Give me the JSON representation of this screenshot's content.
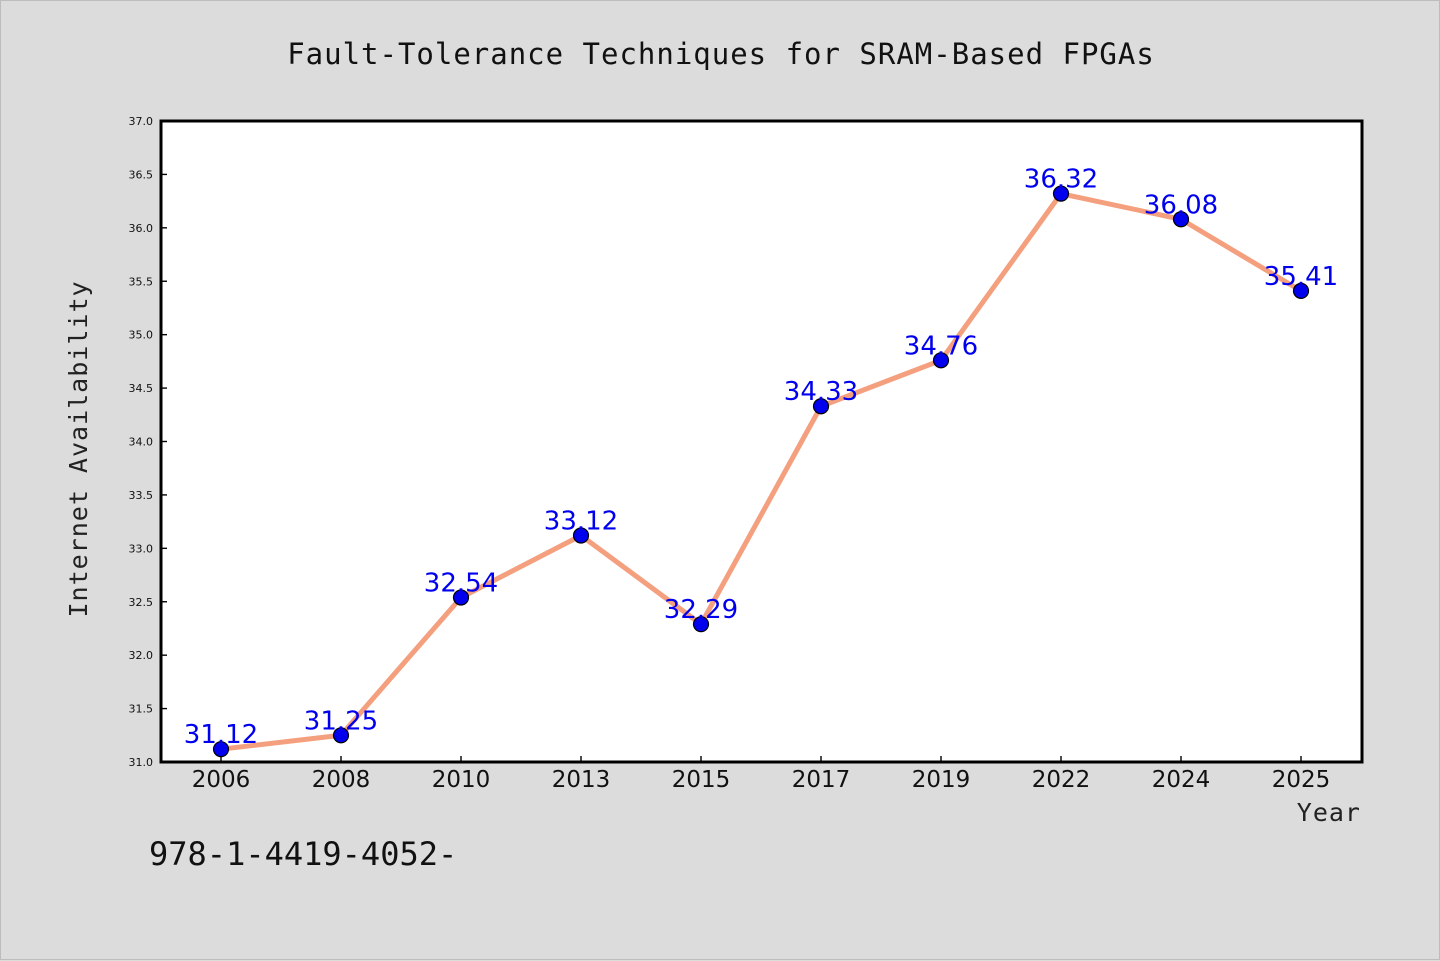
{
  "colors": {
    "background": "#dcdcdc",
    "plot_background": "#ffffff",
    "line": "#f4a07e",
    "marker": "#0000ee",
    "label": "#0000ee"
  },
  "caption": "978-1-4419-4052-",
  "chart_data": {
    "type": "line",
    "title": "Fault-Tolerance Techniques for SRAM-Based FPGAs",
    "xlabel": "Year",
    "ylabel": "Internet Availability",
    "categories": [
      "2006",
      "2008",
      "2010",
      "2013",
      "2015",
      "2017",
      "2019",
      "2022",
      "2024",
      "2025"
    ],
    "series": [
      {
        "values": [
          31.12,
          31.25,
          32.54,
          33.12,
          32.29,
          34.33,
          34.76,
          36.32,
          36.08,
          35.41
        ]
      }
    ],
    "data_labels": [
      "31.12",
      "31.25",
      "32.54",
      "33.12",
      "32.29",
      "34.33",
      "34.76",
      "36.32",
      "36.08",
      "35.41"
    ],
    "ylim": [
      31.0,
      37.0
    ],
    "yticks": [
      "31.0",
      "31.5",
      "32.0",
      "32.5",
      "33.0",
      "33.5",
      "34.0",
      "34.5",
      "35.0",
      "35.5",
      "36.0",
      "36.5",
      "37.0"
    ],
    "grid": false,
    "legend": "none"
  }
}
